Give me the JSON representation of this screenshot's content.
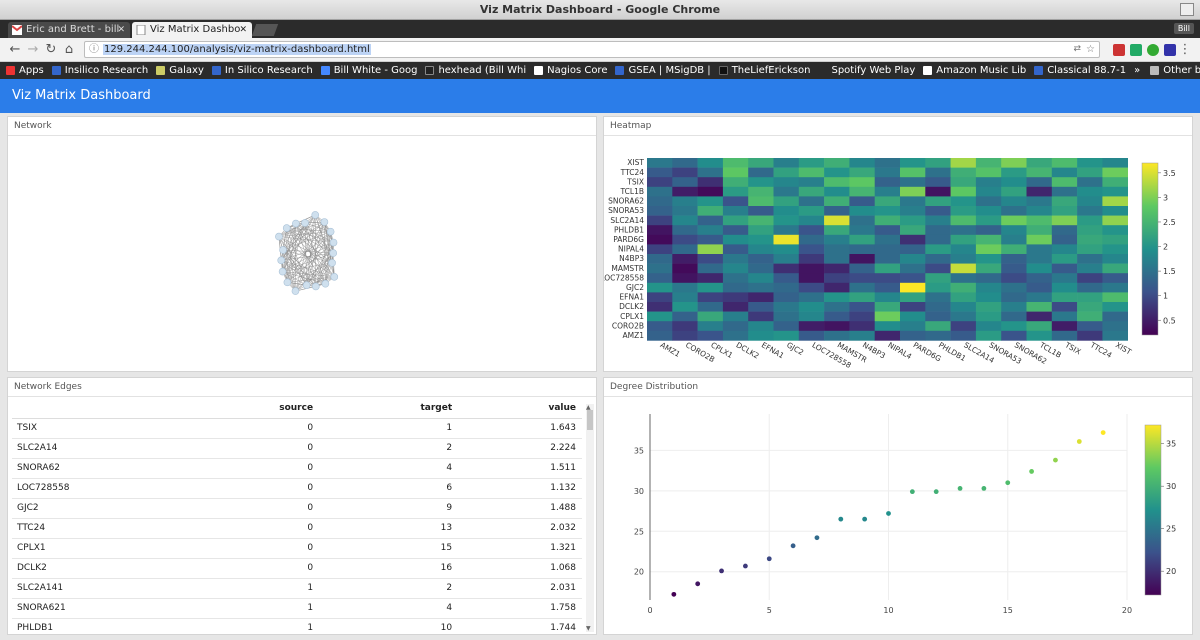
{
  "window": {
    "title": "Viz Matrix Dashboard - Google Chrome"
  },
  "tabs": [
    {
      "label": "Eric and Brett - bill",
      "active": false
    },
    {
      "label": "Viz Matrix Dashbo",
      "active": true
    }
  ],
  "profile_label": "Bill",
  "omnibox": {
    "url": "129.244.244.100/analysis/viz-matrix-dashboard.html"
  },
  "bookmarks": {
    "items": [
      "Apps",
      "Insilico Research",
      "Galaxy",
      "In Silico Research",
      "Bill White - Goog",
      "hexhead (Bill Whi",
      "Nagios Core",
      "GSEA | MSigDB |",
      "TheLiefErickson",
      "Spotify Web Play",
      "Amazon Music Lib",
      "Classical 88.7-1"
    ],
    "overflow": "»",
    "other": "Other bookmarks"
  },
  "app": {
    "title": "Viz Matrix Dashboard"
  },
  "panels": {
    "network": "Network",
    "heatmap": "Heatmap",
    "edges": "Network Edges",
    "degree": "Degree Distribution"
  },
  "edges_table": {
    "headers": [
      "",
      "source",
      "target",
      "value"
    ],
    "rows": [
      [
        "TSIX",
        "0",
        "1",
        "1.643"
      ],
      [
        "SLC2A14",
        "0",
        "2",
        "2.224"
      ],
      [
        "SNORA62",
        "0",
        "4",
        "1.511"
      ],
      [
        "LOC728558",
        "0",
        "6",
        "1.132"
      ],
      [
        "GJC2",
        "0",
        "9",
        "1.488"
      ],
      [
        "TTC24",
        "0",
        "13",
        "2.032"
      ],
      [
        "CPLX1",
        "0",
        "15",
        "1.321"
      ],
      [
        "DCLK2",
        "0",
        "16",
        "1.068"
      ],
      [
        "SLC2A141",
        "1",
        "2",
        "2.031"
      ],
      [
        "SNORA621",
        "1",
        "4",
        "1.758"
      ],
      [
        "PHLDB1",
        "1",
        "10",
        "1.744"
      ]
    ]
  },
  "chart_data": [
    {
      "type": "heatmap",
      "title": "",
      "y_labels": [
        "XIST",
        "TTC24",
        "TSIX",
        "TCL1B",
        "SNORA62",
        "SNORA53",
        "SLC2A14",
        "PHLDB1",
        "PARD6G",
        "NIPAL4",
        "N4BP3",
        "MAMSTR",
        "LOC728558",
        "GJC2",
        "EFNA1",
        "DCLK2",
        "CPLX1",
        "CORO2B",
        "AMZ1"
      ],
      "x_labels": [
        "AMZ1",
        "CORO2B",
        "CPLX1",
        "DCLK2",
        "EFNA1",
        "GJC2",
        "LOC728558",
        "MAMSTR",
        "N4BP3",
        "NIPAL4",
        "PARD6G",
        "PHLDB1",
        "SLC2A14",
        "SNORA53",
        "SNORA62",
        "TCL1B",
        "TSIX",
        "TTC24",
        "XIST"
      ],
      "colorbar_ticks": [
        0.5,
        1,
        1.5,
        2,
        2.5,
        3,
        3.5
      ],
      "zlim": [
        0.2,
        3.7
      ],
      "colorscale": [
        "#440154",
        "#3b528b",
        "#21918c",
        "#5ec962",
        "#fde725"
      ],
      "z": [
        [
          1.6,
          1.4,
          1.9,
          2.6,
          2.3,
          1.7,
          2.1,
          2.4,
          1.8,
          1.5,
          2.0,
          2.2,
          3.2,
          2.5,
          3.0,
          2.3,
          2.6,
          2.0,
          1.8
        ],
        [
          1.2,
          0.9,
          1.5,
          2.8,
          1.4,
          2.2,
          2.6,
          2.0,
          2.3,
          1.6,
          2.7,
          1.5,
          2.4,
          2.7,
          2.1,
          2.5,
          1.8,
          2.2,
          2.9
        ],
        [
          0.9,
          1.3,
          0.7,
          2.4,
          2.0,
          1.8,
          1.7,
          2.6,
          2.8,
          1.3,
          1.5,
          1.2,
          2.3,
          1.7,
          1.9,
          1.4,
          2.6,
          1.5,
          2.4
        ],
        [
          1.5,
          0.5,
          0.3,
          2.1,
          2.5,
          1.6,
          2.3,
          1.9,
          2.5,
          1.7,
          3.0,
          0.4,
          2.8,
          1.8,
          2.2,
          0.6,
          1.5,
          1.9,
          2.0
        ],
        [
          1.4,
          1.7,
          2.0,
          1.1,
          2.6,
          2.2,
          1.5,
          2.4,
          1.2,
          2.3,
          1.6,
          2.2,
          2.0,
          1.5,
          1.8,
          1.6,
          2.3,
          1.8,
          3.2
        ],
        [
          1.3,
          1.6,
          2.4,
          1.7,
          1.2,
          1.9,
          2.1,
          1.3,
          1.9,
          2.0,
          1.7,
          1.2,
          2.1,
          1.9,
          1.5,
          1.8,
          2.2,
          1.6,
          1.9
        ],
        [
          0.9,
          1.8,
          1.3,
          2.2,
          2.5,
          2.0,
          1.8,
          3.5,
          1.5,
          2.4,
          2.1,
          1.7,
          2.6,
          2.1,
          2.9,
          2.6,
          3.0,
          2.1,
          3.1
        ],
        [
          0.4,
          1.4,
          1.7,
          1.2,
          2.2,
          1.6,
          1.1,
          2.3,
          1.6,
          1.2,
          2.3,
          1.4,
          1.5,
          1.3,
          1.8,
          2.4,
          1.4,
          2.2,
          2.0
        ],
        [
          0.3,
          1.0,
          1.2,
          1.9,
          2.0,
          3.6,
          1.4,
          1.7,
          2.2,
          1.5,
          0.7,
          1.4,
          2.2,
          2.5,
          1.7,
          2.9,
          1.3,
          2.3,
          2.2
        ],
        [
          0.9,
          1.4,
          3.1,
          1.2,
          1.8,
          1.9,
          1.1,
          1.5,
          1.4,
          1.4,
          1.3,
          2.1,
          1.8,
          2.9,
          2.4,
          1.6,
          1.8,
          2.2,
          2.0
        ],
        [
          1.4,
          0.5,
          1.0,
          1.6,
          1.3,
          1.7,
          0.8,
          1.5,
          0.4,
          1.4,
          1.8,
          1.4,
          1.7,
          2.0,
          1.3,
          1.6,
          2.1,
          1.5,
          1.8
        ],
        [
          1.5,
          0.3,
          1.4,
          1.8,
          1.4,
          0.7,
          0.4,
          0.6,
          1.3,
          2.2,
          1.5,
          1.0,
          3.4,
          2.3,
          1.2,
          1.9,
          1.2,
          1.7,
          2.3
        ],
        [
          1.3,
          0.4,
          0.6,
          1.5,
          1.8,
          1.2,
          0.4,
          0.9,
          1.0,
          1.0,
          1.1,
          2.2,
          1.5,
          1.4,
          1.0,
          1.3,
          1.6,
          0.9,
          1.2
        ],
        [
          2.0,
          1.6,
          2.0,
          1.4,
          1.5,
          1.4,
          1.0,
          0.6,
          1.5,
          1.2,
          3.7,
          2.1,
          2.4,
          1.8,
          1.5,
          1.2,
          1.9,
          1.4,
          1.6
        ],
        [
          0.9,
          1.7,
          0.9,
          0.8,
          0.6,
          1.3,
          1.5,
          2.0,
          2.2,
          1.8,
          2.2,
          1.5,
          2.2,
          1.9,
          1.4,
          1.6,
          2.2,
          2.2,
          2.6
        ],
        [
          0.7,
          2.0,
          1.4,
          0.6,
          1.2,
          1.6,
          1.9,
          1.5,
          1.1,
          2.3,
          0.9,
          1.4,
          1.8,
          2.2,
          1.7,
          2.5,
          1.0,
          2.3,
          2.0
        ],
        [
          2.0,
          1.3,
          2.3,
          1.7,
          0.8,
          1.5,
          1.8,
          1.2,
          0.9,
          2.9,
          1.9,
          1.3,
          1.6,
          2.1,
          1.4,
          0.6,
          1.6,
          2.4,
          1.4
        ],
        [
          1.2,
          0.8,
          1.7,
          1.4,
          1.8,
          1.3,
          0.5,
          0.4,
          0.7,
          1.9,
          1.7,
          2.3,
          0.9,
          1.8,
          2.0,
          2.3,
          0.5,
          1.2,
          1.5
        ],
        [
          1.3,
          0.9,
          1.1,
          1.5,
          1.9,
          2.0,
          1.2,
          1.5,
          1.7,
          0.6,
          1.3,
          1.4,
          1.2,
          2.1,
          1.1,
          2.0,
          1.4,
          0.8,
          1.6
        ]
      ]
    },
    {
      "type": "scatter",
      "title": "",
      "xlabel": "",
      "ylabel": "",
      "xlim": [
        0,
        20
      ],
      "ylim": [
        16.5,
        39.5
      ],
      "x_ticks": [
        0,
        5,
        10,
        15,
        20
      ],
      "y_ticks": [
        20,
        25,
        30,
        35
      ],
      "colorbar_ticks": [
        20,
        25,
        30,
        35
      ],
      "zlim": [
        17.2,
        37.2
      ],
      "colorscale": [
        "#440154",
        "#3b528b",
        "#21918c",
        "#5ec962",
        "#fde725"
      ],
      "x": [
        1,
        2,
        3,
        4,
        5,
        6,
        7,
        8,
        9,
        10,
        11,
        12,
        13,
        14,
        15,
        16,
        17,
        18,
        19
      ],
      "y": [
        17.2,
        18.5,
        20.1,
        20.7,
        21.6,
        23.2,
        24.2,
        26.5,
        26.5,
        27.2,
        29.9,
        29.9,
        30.3,
        30.3,
        31.0,
        32.4,
        33.8,
        36.1,
        37.2
      ]
    }
  ]
}
